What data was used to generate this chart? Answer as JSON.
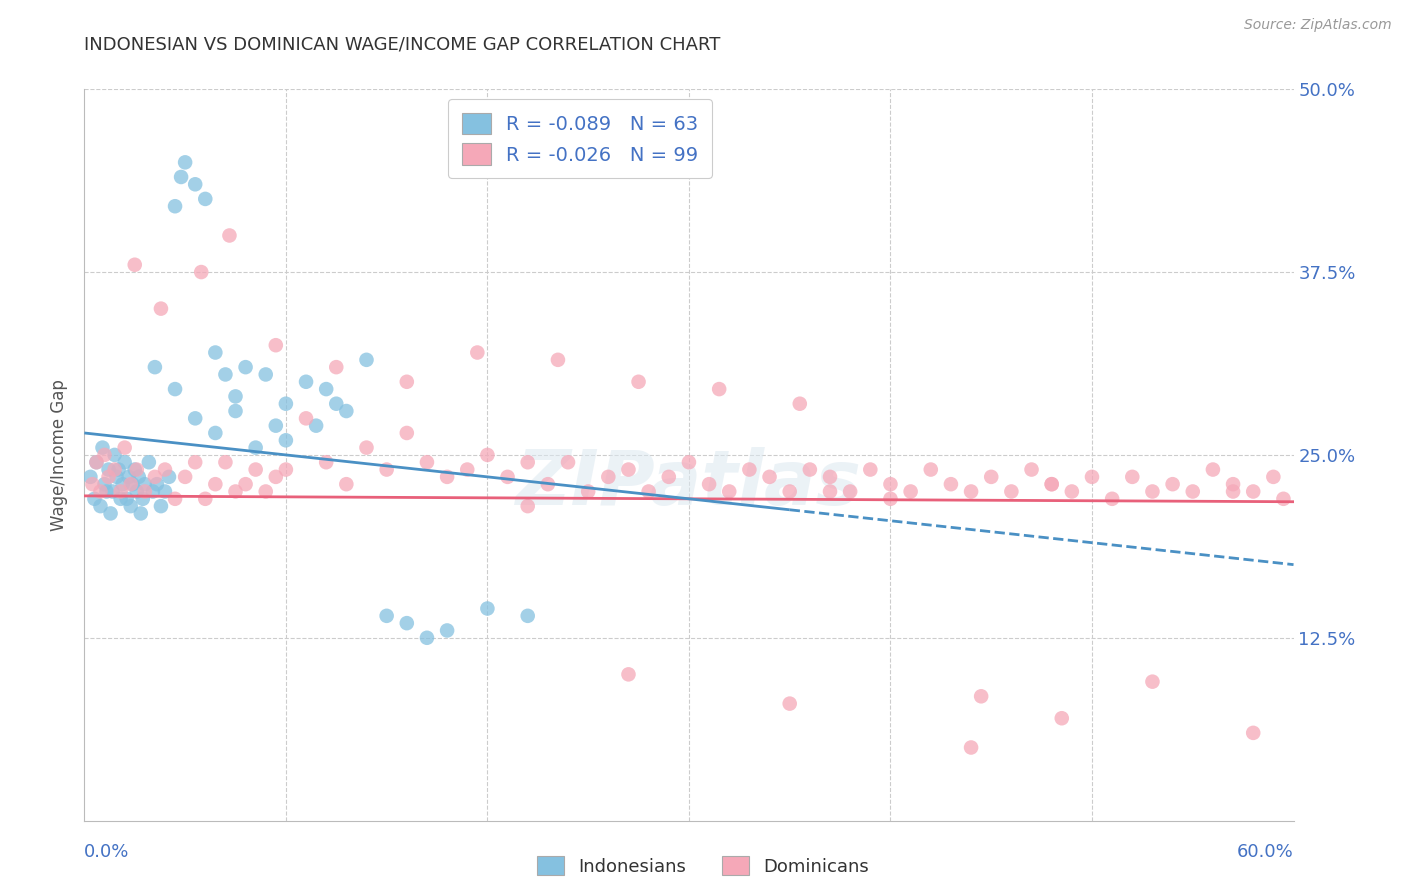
{
  "title": "INDONESIAN VS DOMINICAN WAGE/INCOME GAP CORRELATION CHART",
  "source": "Source: ZipAtlas.com",
  "ylabel": "Wage/Income Gap",
  "legend_label1": "Indonesians",
  "legend_label2": "Dominicans",
  "legend_r1": "R = -0.089",
  "legend_n1": "N = 63",
  "legend_r2": "R = -0.026",
  "legend_n2": "N = 99",
  "blue_color": "#85c1e0",
  "pink_color": "#f5a8b8",
  "blue_line_color": "#4a90c4",
  "pink_line_color": "#e8607a",
  "title_color": "#333333",
  "axis_label_color": "#4472c4",
  "watermark": "ZIPatlas",
  "indo_x": [
    0.3,
    0.5,
    0.6,
    0.8,
    0.9,
    1.0,
    1.1,
    1.2,
    1.3,
    1.4,
    1.5,
    1.6,
    1.7,
    1.8,
    1.9,
    2.0,
    2.1,
    2.2,
    2.3,
    2.4,
    2.5,
    2.6,
    2.7,
    2.8,
    2.9,
    3.0,
    3.2,
    3.4,
    3.6,
    3.8,
    4.0,
    4.2,
    4.5,
    4.8,
    5.0,
    5.5,
    6.0,
    6.5,
    7.0,
    7.5,
    8.0,
    9.0,
    10.0,
    11.0,
    12.0,
    13.0,
    14.0,
    15.0,
    16.0,
    17.0,
    18.0,
    20.0,
    22.0,
    10.0,
    11.5,
    12.5,
    5.5,
    6.5,
    7.5,
    4.5,
    3.5,
    8.5,
    9.5
  ],
  "indo_y": [
    23.5,
    22.0,
    24.5,
    21.5,
    25.5,
    23.0,
    22.5,
    24.0,
    21.0,
    22.5,
    25.0,
    23.5,
    24.0,
    22.0,
    23.0,
    24.5,
    22.0,
    23.5,
    21.5,
    23.0,
    24.0,
    22.5,
    23.5,
    21.0,
    22.0,
    23.0,
    24.5,
    22.5,
    23.0,
    21.5,
    22.5,
    23.5,
    42.0,
    44.0,
    45.0,
    43.5,
    42.5,
    32.0,
    30.5,
    29.0,
    31.0,
    30.5,
    28.5,
    30.0,
    29.5,
    28.0,
    31.5,
    14.0,
    13.5,
    12.5,
    13.0,
    14.5,
    14.0,
    26.0,
    27.0,
    28.5,
    27.5,
    26.5,
    28.0,
    29.5,
    31.0,
    25.5,
    27.0
  ],
  "dom_x": [
    0.4,
    0.6,
    0.8,
    1.0,
    1.2,
    1.5,
    1.8,
    2.0,
    2.3,
    2.6,
    3.0,
    3.5,
    4.0,
    4.5,
    5.0,
    5.5,
    6.0,
    6.5,
    7.0,
    7.5,
    8.0,
    8.5,
    9.0,
    9.5,
    10.0,
    11.0,
    12.0,
    13.0,
    14.0,
    15.0,
    16.0,
    17.0,
    18.0,
    19.0,
    20.0,
    21.0,
    22.0,
    23.0,
    24.0,
    25.0,
    26.0,
    27.0,
    28.0,
    29.0,
    30.0,
    31.0,
    32.0,
    33.0,
    34.0,
    35.0,
    36.0,
    37.0,
    38.0,
    39.0,
    40.0,
    41.0,
    42.0,
    43.0,
    44.0,
    45.0,
    46.0,
    47.0,
    48.0,
    49.0,
    50.0,
    51.0,
    52.0,
    53.0,
    54.0,
    55.0,
    56.0,
    57.0,
    58.0,
    59.0,
    2.5,
    3.8,
    5.8,
    7.2,
    9.5,
    12.5,
    16.0,
    19.5,
    23.5,
    27.5,
    31.5,
    35.5,
    40.0,
    44.5,
    48.5,
    53.0,
    58.0,
    22.0,
    35.0,
    48.0,
    37.0,
    27.0,
    44.0,
    57.0,
    59.5
  ],
  "dom_y": [
    23.0,
    24.5,
    22.5,
    25.0,
    23.5,
    24.0,
    22.5,
    25.5,
    23.0,
    24.0,
    22.5,
    23.5,
    24.0,
    22.0,
    23.5,
    24.5,
    22.0,
    23.0,
    24.5,
    22.5,
    23.0,
    24.0,
    22.5,
    23.5,
    24.0,
    27.5,
    24.5,
    23.0,
    25.5,
    24.0,
    26.5,
    24.5,
    23.5,
    24.0,
    25.0,
    23.5,
    24.5,
    23.0,
    24.5,
    22.5,
    23.5,
    24.0,
    22.5,
    23.5,
    24.5,
    23.0,
    22.5,
    24.0,
    23.5,
    22.5,
    24.0,
    23.5,
    22.5,
    24.0,
    23.0,
    22.5,
    24.0,
    23.0,
    22.5,
    23.5,
    22.5,
    24.0,
    23.0,
    22.5,
    23.5,
    22.0,
    23.5,
    22.5,
    23.0,
    22.5,
    24.0,
    23.0,
    22.5,
    23.5,
    38.0,
    35.0,
    37.5,
    40.0,
    32.5,
    31.0,
    30.0,
    32.0,
    31.5,
    30.0,
    29.5,
    28.5,
    22.0,
    8.5,
    7.0,
    9.5,
    6.0,
    21.5,
    8.0,
    23.0,
    22.5,
    10.0,
    5.0,
    22.5,
    22.0
  ]
}
